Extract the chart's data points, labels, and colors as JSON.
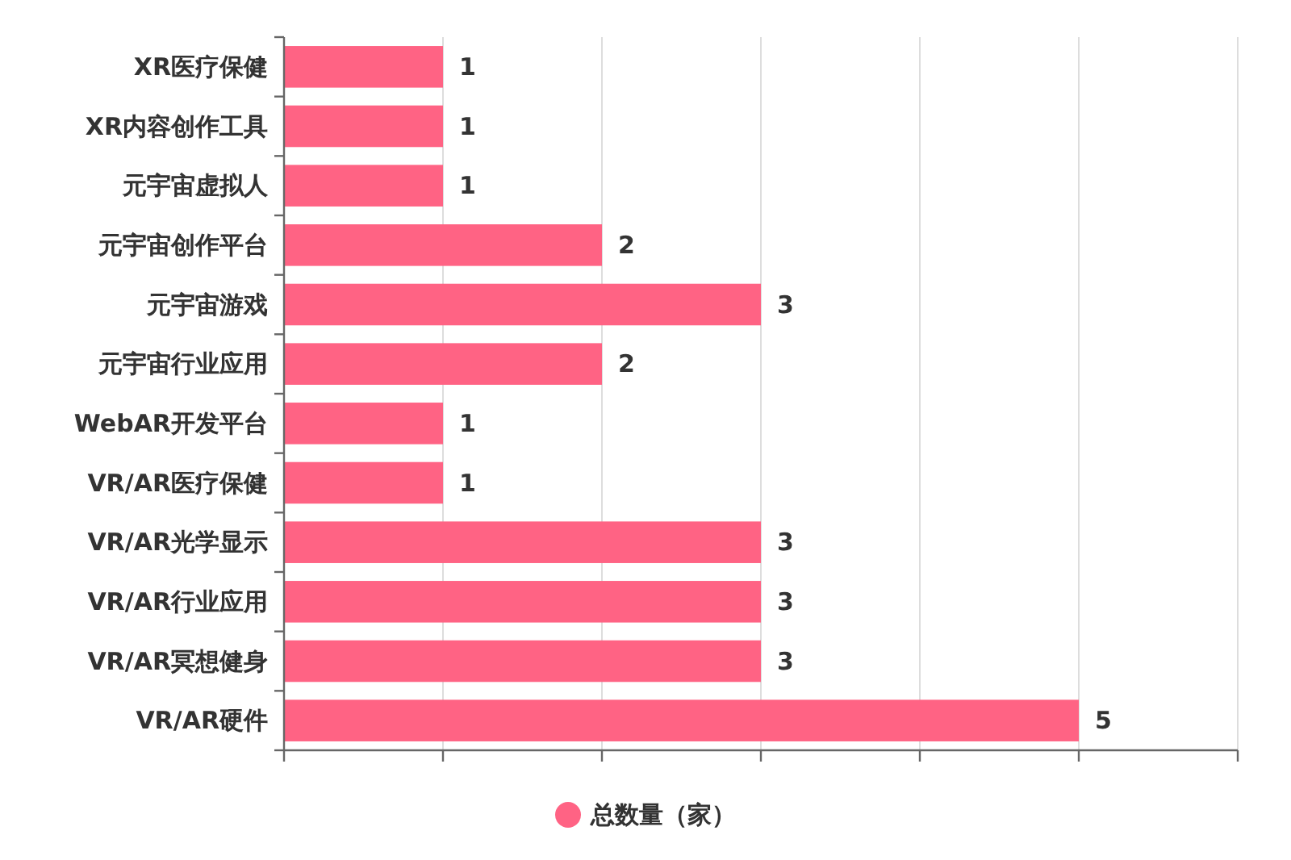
{
  "chart_data": {
    "type": "bar",
    "orientation": "horizontal",
    "categories": [
      "XR医疗保健",
      "XR内容创作工具",
      "元宇宙虚拟人",
      "元宇宙创作平台",
      "元宇宙游戏",
      "元宇宙行业应用",
      "WebAR开发平台",
      "VR/AR医疗保健",
      "VR/AR光学显示",
      "VR/AR行业应用",
      "VR/AR冥想健身",
      "VR/AR硬件"
    ],
    "series": [
      {
        "name": "总数量（家）",
        "color": "#ff6384",
        "values": [
          1,
          1,
          1,
          2,
          3,
          2,
          1,
          1,
          3,
          3,
          3,
          5
        ]
      }
    ],
    "xlim": [
      0,
      6
    ],
    "xticks": [
      {
        "value": 0,
        "label": null
      },
      {
        "value": 1,
        "label": null
      },
      {
        "value": 2,
        "label": null
      },
      {
        "value": 3,
        "label": null
      },
      {
        "value": 4,
        "label": null
      },
      {
        "value": 5,
        "label": null
      },
      {
        "value": 6,
        "label": null
      }
    ],
    "tick_labels": "y",
    "grid": "x",
    "legend": "bottom",
    "data_labels": true
  }
}
